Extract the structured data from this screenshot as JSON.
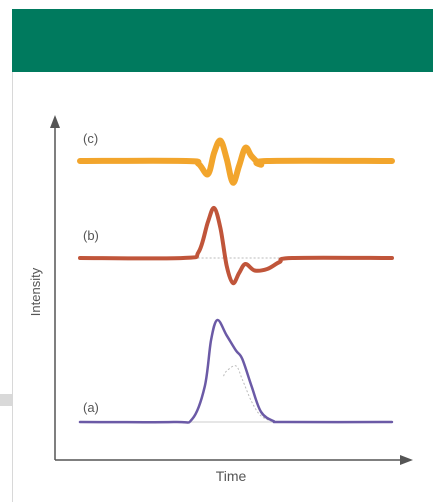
{
  "header": {
    "color": "#007a5e"
  },
  "chart_data": {
    "type": "line",
    "title": "",
    "xlabel": "Time",
    "ylabel": "Intensity",
    "grid": false,
    "legend": "none",
    "series": [
      {
        "label": "(a)",
        "color": "#6b5aa6",
        "kind": "peak",
        "baseline_dotted": false,
        "points": [
          [
            0,
            0
          ],
          [
            0.3,
            0
          ],
          [
            0.36,
            0.03
          ],
          [
            0.4,
            0.35
          ],
          [
            0.42,
            0.8
          ],
          [
            0.44,
            1.0
          ],
          [
            0.47,
            0.85
          ],
          [
            0.5,
            0.7
          ],
          [
            0.52,
            0.62
          ],
          [
            0.55,
            0.35
          ],
          [
            0.58,
            0.1
          ],
          [
            0.62,
            0.01
          ],
          [
            0.66,
            0
          ],
          [
            1.0,
            0
          ]
        ]
      },
      {
        "label": "(b)",
        "color": "#c0553a",
        "kind": "first-derivative",
        "baseline_dotted": true,
        "points": [
          [
            0,
            0
          ],
          [
            0.33,
            0
          ],
          [
            0.38,
            0.12
          ],
          [
            0.41,
            0.72
          ],
          [
            0.43,
            1.0
          ],
          [
            0.45,
            0.6
          ],
          [
            0.47,
            -0.15
          ],
          [
            0.49,
            -0.5
          ],
          [
            0.51,
            -0.3
          ],
          [
            0.53,
            -0.12
          ],
          [
            0.56,
            -0.25
          ],
          [
            0.6,
            -0.22
          ],
          [
            0.64,
            -0.08
          ],
          [
            0.68,
            0
          ],
          [
            1.0,
            0
          ]
        ]
      },
      {
        "label": "(c)",
        "color": "#f2a52c",
        "kind": "second-derivative",
        "baseline_dotted": false,
        "points": [
          [
            0,
            0
          ],
          [
            0.34,
            0
          ],
          [
            0.38,
            -0.12
          ],
          [
            0.41,
            -0.55
          ],
          [
            0.43,
            0.35
          ],
          [
            0.45,
            0.85
          ],
          [
            0.47,
            0.1
          ],
          [
            0.49,
            -0.9
          ],
          [
            0.51,
            -0.2
          ],
          [
            0.53,
            0.55
          ],
          [
            0.55,
            0.2
          ],
          [
            0.58,
            -0.15
          ],
          [
            0.6,
            0
          ],
          [
            1.0,
            0
          ]
        ]
      }
    ],
    "annotation": {
      "dotted_component_curve": true
    }
  }
}
